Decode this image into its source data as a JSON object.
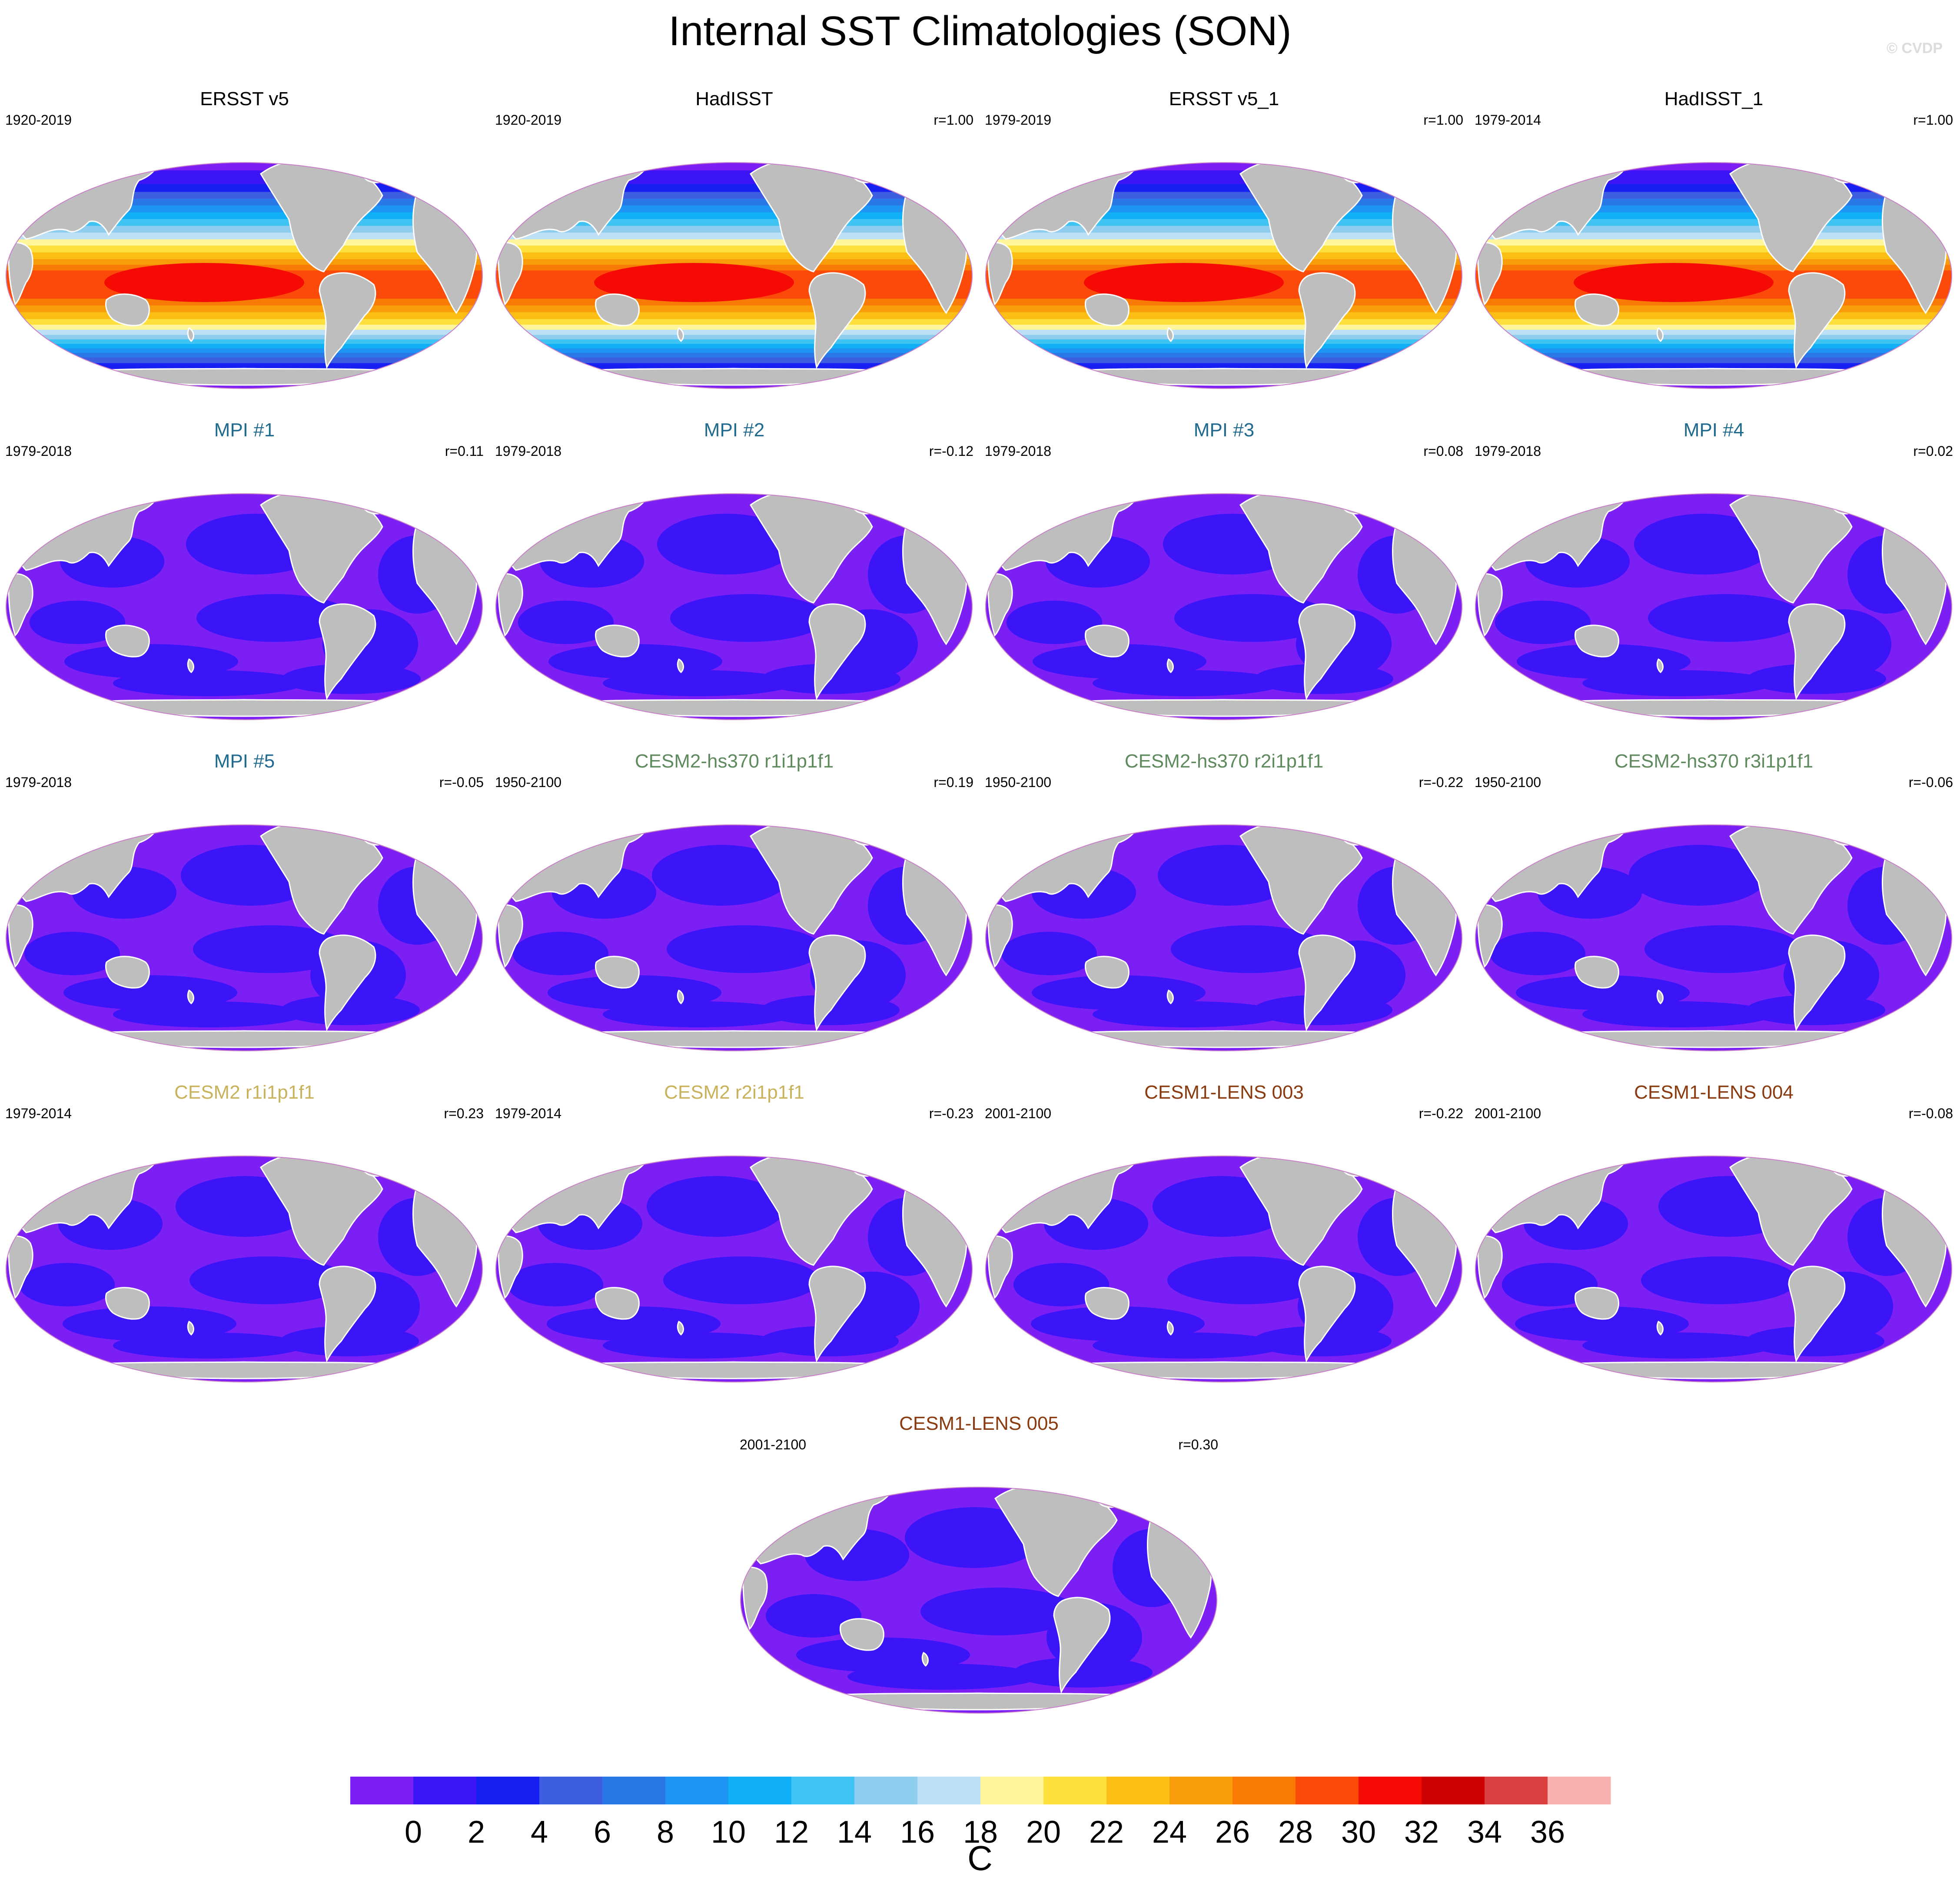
{
  "title": "Internal SST Climatologies (SON)",
  "copyright": "© CVDP",
  "colors": {
    "land": "#bebebe",
    "coast": "#ffffff",
    "purple_bin": "#7c1ff5",
    "blue_bin": "#3b14f7",
    "obs_title": "#000000",
    "mpi_title": "#1f6a8e",
    "cesm2hs_title": "#5e8a5e",
    "cesm2_title": "#c9b25c",
    "cesm1_title": "#8a3a0f"
  },
  "chart_data": [
    {
      "type": "heatmap",
      "title": "ERSST v5",
      "years": "1920-2019",
      "r": "",
      "style": "obs",
      "title_color": "#000000"
    },
    {
      "type": "heatmap",
      "title": "HadISST",
      "years": "1920-2019",
      "r": "r=1.00",
      "style": "obs",
      "title_color": "#000000"
    },
    {
      "type": "heatmap",
      "title": "ERSST v5_1",
      "years": "1979-2019",
      "r": "r=1.00",
      "style": "obs",
      "title_color": "#000000"
    },
    {
      "type": "heatmap",
      "title": "HadISST_1",
      "years": "1979-2014",
      "r": "r=1.00",
      "style": "obs",
      "title_color": "#000000"
    },
    {
      "type": "heatmap",
      "title": "MPI #1",
      "years": "1979-2018",
      "r": "r=0.11",
      "style": "model",
      "title_color": "#1f6a8e"
    },
    {
      "type": "heatmap",
      "title": "MPI #2",
      "years": "1979-2018",
      "r": "r=-0.12",
      "style": "model",
      "title_color": "#1f6a8e"
    },
    {
      "type": "heatmap",
      "title": "MPI #3",
      "years": "1979-2018",
      "r": "r=0.08",
      "style": "model",
      "title_color": "#1f6a8e"
    },
    {
      "type": "heatmap",
      "title": "MPI #4",
      "years": "1979-2018",
      "r": "r=0.02",
      "style": "model",
      "title_color": "#1f6a8e"
    },
    {
      "type": "heatmap",
      "title": "MPI #5",
      "years": "1979-2018",
      "r": "r=-0.05",
      "style": "model",
      "title_color": "#1f6a8e"
    },
    {
      "type": "heatmap",
      "title": "CESM2-hs370 r1i1p1f1",
      "years": "1950-2100",
      "r": "r=0.19",
      "style": "model",
      "title_color": "#5e8a5e"
    },
    {
      "type": "heatmap",
      "title": "CESM2-hs370 r2i1p1f1",
      "years": "1950-2100",
      "r": "r=-0.22",
      "style": "model",
      "title_color": "#5e8a5e"
    },
    {
      "type": "heatmap",
      "title": "CESM2-hs370 r3i1p1f1",
      "years": "1950-2100",
      "r": "r=-0.06",
      "style": "model",
      "title_color": "#5e8a5e"
    },
    {
      "type": "heatmap",
      "title": "CESM2 r1i1p1f1",
      "years": "1979-2014",
      "r": "r=0.23",
      "style": "model",
      "title_color": "#c9b25c"
    },
    {
      "type": "heatmap",
      "title": "CESM2 r2i1p1f1",
      "years": "1979-2014",
      "r": "r=-0.23",
      "style": "model",
      "title_color": "#c9b25c"
    },
    {
      "type": "heatmap",
      "title": "CESM1-LENS 003",
      "years": "2001-2100",
      "r": "r=-0.22",
      "style": "model",
      "title_color": "#8a3a0f"
    },
    {
      "type": "heatmap",
      "title": "CESM1-LENS 004",
      "years": "2001-2100",
      "r": "r=-0.08",
      "style": "model",
      "title_color": "#8a3a0f"
    },
    {
      "type": "heatmap",
      "title": "CESM1-LENS 005",
      "years": "2001-2100",
      "r": "r=0.30",
      "style": "model",
      "title_color": "#8a3a0f"
    }
  ],
  "colorbar": {
    "units": "C",
    "ticks": [
      "0",
      "2",
      "4",
      "6",
      "8",
      "10",
      "12",
      "14",
      "16",
      "18",
      "20",
      "22",
      "24",
      "26",
      "28",
      "30",
      "32",
      "34",
      "36"
    ],
    "colors": [
      "#7c1ff5",
      "#3b14f7",
      "#1620f2",
      "#3d5ee0",
      "#2a78e8",
      "#1e94f4",
      "#0fb0f6",
      "#3fc3f3",
      "#8ecdee",
      "#bde0f6",
      "#fff59a",
      "#fde03c",
      "#fbbe14",
      "#f99c0a",
      "#fa7a06",
      "#fb4a0a",
      "#f50a04",
      "#cc0202",
      "#da4040",
      "#fbb0b0"
    ]
  }
}
